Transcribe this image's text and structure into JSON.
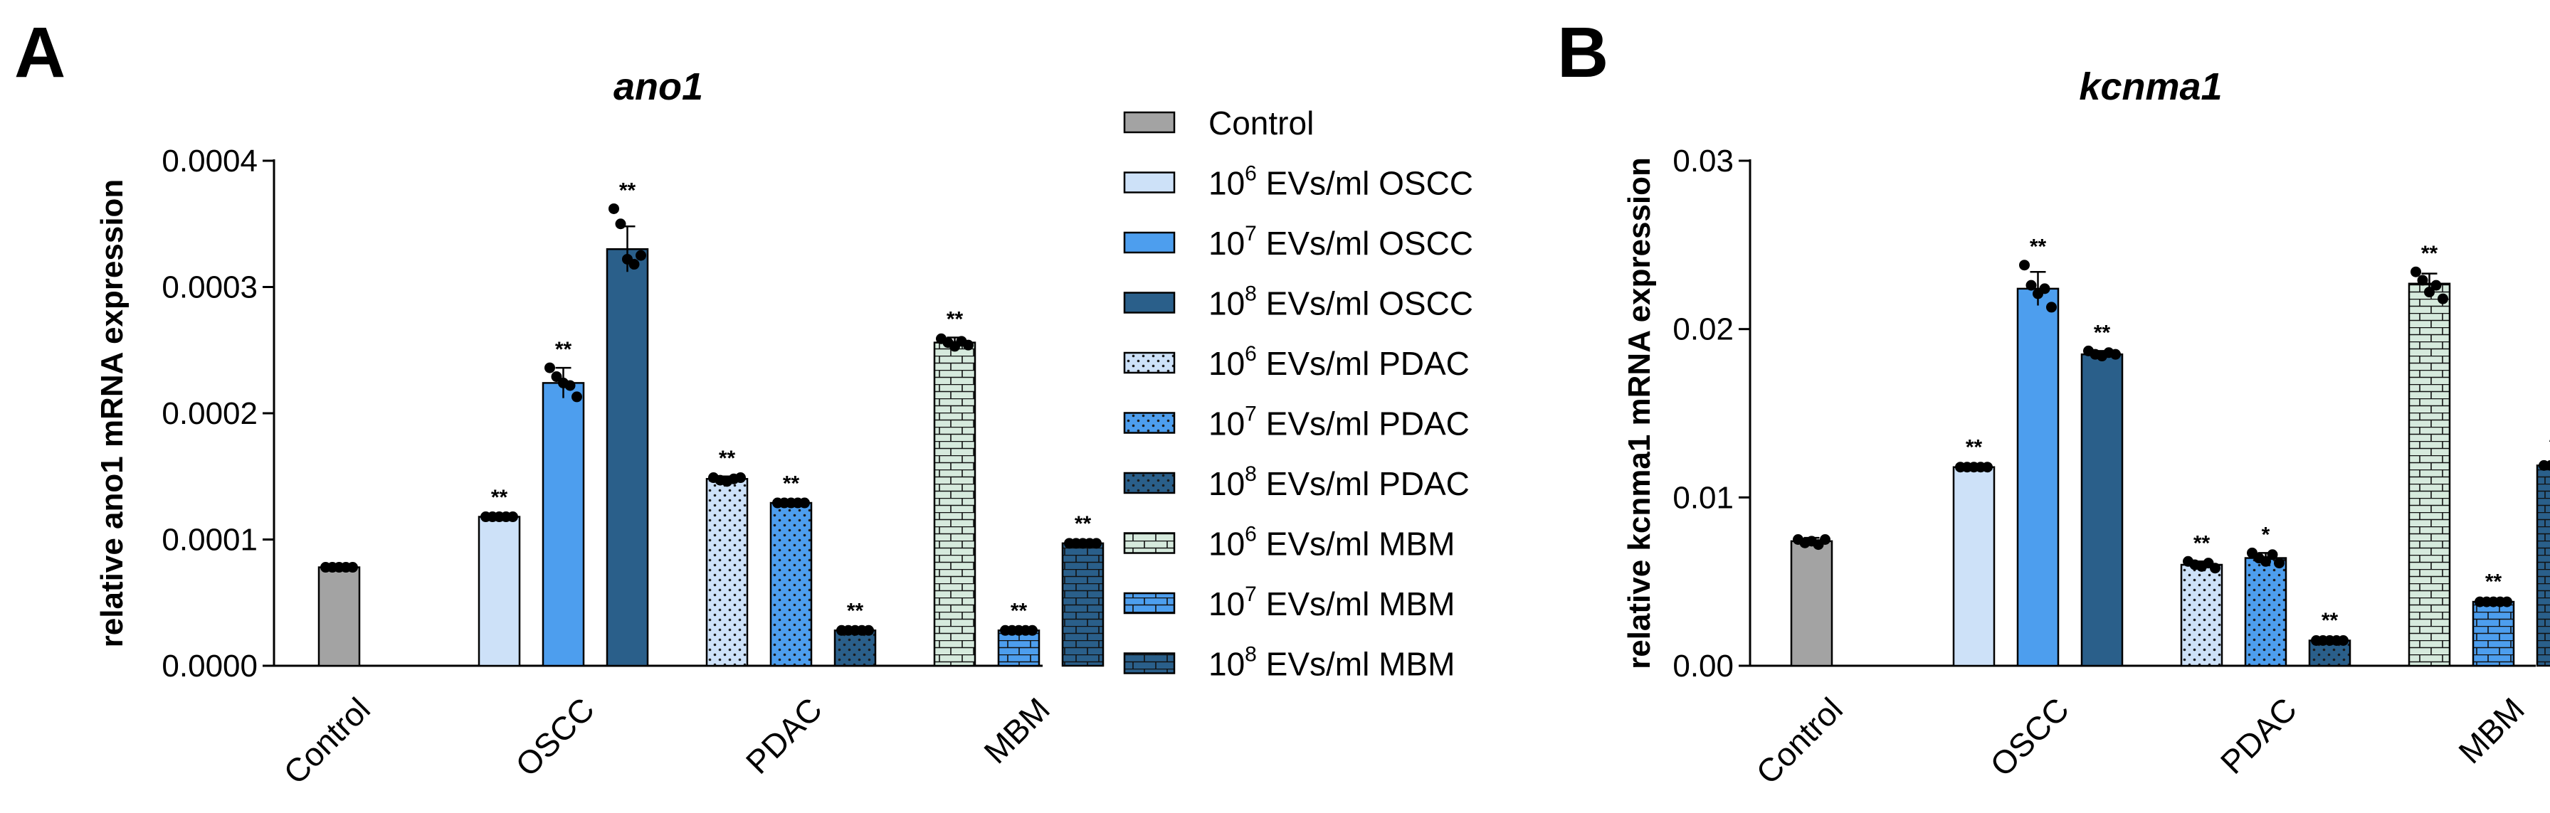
{
  "legend": [
    {
      "id": "ctrl",
      "power": "",
      "label": "Control",
      "fill": "#a3a3a3",
      "pattern": "solid"
    },
    {
      "id": "oscc6",
      "power": "6",
      "label": " EVs/ml OSCC",
      "fill": "#cde1f8",
      "pattern": "solid"
    },
    {
      "id": "oscc7",
      "power": "7",
      "label": " EVs/ml OSCC",
      "fill": "#4d9eee",
      "pattern": "solid"
    },
    {
      "id": "oscc8",
      "power": "8",
      "label": " EVs/ml OSCC",
      "fill": "#2a5f8a",
      "pattern": "solid"
    },
    {
      "id": "pdac6",
      "power": "6",
      "label": " EVs/ml PDAC",
      "fill": "#cde1f8",
      "pattern": "dots"
    },
    {
      "id": "pdac7",
      "power": "7",
      "label": " EVs/ml PDAC",
      "fill": "#4d9eee",
      "pattern": "dots"
    },
    {
      "id": "pdac8",
      "power": "8",
      "label": " EVs/ml PDAC",
      "fill": "#2a5f8a",
      "pattern": "dots"
    },
    {
      "id": "mbm6",
      "power": "6",
      "label": " EVs/ml MBM",
      "fill": "#d6eadd",
      "pattern": "bricks"
    },
    {
      "id": "mbm7",
      "power": "7",
      "label": " EVs/ml MBM",
      "fill": "#4d9eee",
      "pattern": "bricks"
    },
    {
      "id": "mbm8",
      "power": "8",
      "label": " EVs/ml MBM",
      "fill": "#2a5f8a",
      "pattern": "bricks"
    }
  ],
  "legend_base": "10",
  "chart_data": [
    {
      "panel": "A",
      "type": "bar",
      "title": "ano1",
      "ylabel": "relative ano1 mRNA expression",
      "ylim": [
        0,
        0.0004
      ],
      "yticks": [
        "0.0000",
        "0.0001",
        "0.0002",
        "0.0003",
        "0.0004"
      ],
      "ytick_values": [
        0,
        0.0001,
        0.0002,
        0.0003,
        0.0004
      ],
      "groups": [
        "Control",
        "OSCC",
        "PDAC",
        "MBM"
      ],
      "bars": [
        {
          "series": "ctrl",
          "group": 0,
          "value": 7.8e-05,
          "err": 2e-06,
          "sig": "",
          "points": [
            7.8e-05,
            7.8e-05,
            7.8e-05,
            7.8e-05,
            7.8e-05
          ]
        },
        {
          "series": "oscc6",
          "group": 1,
          "value": 0.000118,
          "err": 1e-06,
          "sig": "**",
          "points": [
            0.000118,
            0.000118,
            0.000118,
            0.000118,
            0.000118
          ]
        },
        {
          "series": "oscc7",
          "group": 1,
          "value": 0.000224,
          "err": 1.2e-05,
          "sig": "**",
          "points": [
            0.000236,
            0.000229,
            0.000224,
            0.000222,
            0.000213
          ]
        },
        {
          "series": "oscc8",
          "group": 1,
          "value": 0.00033,
          "err": 1.8e-05,
          "sig": "**",
          "points": [
            0.000362,
            0.00035,
            0.000322,
            0.000318,
            0.000325
          ]
        },
        {
          "series": "pdac6",
          "group": 2,
          "value": 0.000148,
          "err": 2e-06,
          "sig": "**",
          "points": [
            0.000149,
            0.000147,
            0.000146,
            0.000148,
            0.000149
          ]
        },
        {
          "series": "pdac7",
          "group": 2,
          "value": 0.000129,
          "err": 1e-06,
          "sig": "**",
          "points": [
            0.000129,
            0.000129,
            0.000129,
            0.000129,
            0.000129
          ]
        },
        {
          "series": "pdac8",
          "group": 2,
          "value": 2.8e-05,
          "err": 1e-06,
          "sig": "**",
          "points": [
            2.8e-05,
            2.8e-05,
            2.8e-05,
            2.8e-05,
            2.8e-05
          ]
        },
        {
          "series": "mbm6",
          "group": 3,
          "value": 0.000256,
          "err": 4e-06,
          "sig": "**",
          "points": [
            0.000259,
            0.000256,
            0.000253,
            0.000257,
            0.000254
          ]
        },
        {
          "series": "mbm7",
          "group": 3,
          "value": 2.8e-05,
          "err": 1e-06,
          "sig": "**",
          "points": [
            2.8e-05,
            2.8e-05,
            2.8e-05,
            2.8e-05,
            2.8e-05
          ]
        },
        {
          "series": "mbm8",
          "group": 3,
          "value": 9.7e-05,
          "err": 1e-06,
          "sig": "**",
          "points": [
            9.7e-05,
            9.7e-05,
            9.7e-05,
            9.7e-05,
            9.7e-05
          ]
        }
      ]
    },
    {
      "panel": "B",
      "type": "bar",
      "title": "kcnma1",
      "ylabel": "relative kcnma1 mRNA expression",
      "ylim": [
        0,
        0.03
      ],
      "yticks": [
        "0.00",
        "0.01",
        "0.02",
        "0.03"
      ],
      "ytick_values": [
        0,
        0.01,
        0.02,
        0.03
      ],
      "groups": [
        "Control",
        "OSCC",
        "PDAC",
        "MBM"
      ],
      "bars": [
        {
          "series": "ctrl",
          "group": 0,
          "value": 0.0074,
          "err": 0.0002,
          "sig": "",
          "points": [
            0.0075,
            0.0073,
            0.0074,
            0.0072,
            0.0075
          ]
        },
        {
          "series": "oscc6",
          "group": 1,
          "value": 0.0118,
          "err": 0.0001,
          "sig": "**",
          "points": [
            0.0118,
            0.0118,
            0.0118,
            0.0118,
            0.0118
          ]
        },
        {
          "series": "oscc7",
          "group": 1,
          "value": 0.0224,
          "err": 0.001,
          "sig": "**",
          "points": [
            0.0238,
            0.0226,
            0.0221,
            0.0224,
            0.0213
          ]
        },
        {
          "series": "oscc8",
          "group": 1,
          "value": 0.0185,
          "err": 0.0002,
          "sig": "**",
          "points": [
            0.0187,
            0.0185,
            0.0184,
            0.0186,
            0.0185
          ]
        },
        {
          "series": "pdac6",
          "group": 2,
          "value": 0.006,
          "err": 0.0002,
          "sig": "**",
          "points": [
            0.0062,
            0.006,
            0.0059,
            0.0061,
            0.0058
          ]
        },
        {
          "series": "pdac7",
          "group": 2,
          "value": 0.0064,
          "err": 0.0003,
          "sig": "*",
          "points": [
            0.0067,
            0.0064,
            0.0062,
            0.0066,
            0.0061
          ]
        },
        {
          "series": "pdac8",
          "group": 2,
          "value": 0.0015,
          "err": 0.0001,
          "sig": "**",
          "points": [
            0.0015,
            0.0015,
            0.0015,
            0.0015,
            0.0015
          ]
        },
        {
          "series": "mbm6",
          "group": 3,
          "value": 0.0227,
          "err": 0.0006,
          "sig": "**",
          "points": [
            0.0234,
            0.0229,
            0.0222,
            0.0226,
            0.0218
          ]
        },
        {
          "series": "mbm7",
          "group": 3,
          "value": 0.0038,
          "err": 0.0001,
          "sig": "**",
          "points": [
            0.0038,
            0.0038,
            0.0038,
            0.0038,
            0.0038
          ]
        },
        {
          "series": "mbm8",
          "group": 3,
          "value": 0.0119,
          "err": 0.0001,
          "sig": "**",
          "points": [
            0.0119,
            0.0119,
            0.0119,
            0.0119,
            0.0119
          ]
        }
      ]
    }
  ]
}
